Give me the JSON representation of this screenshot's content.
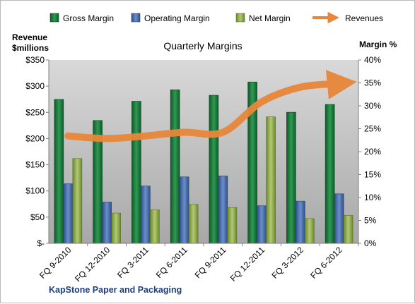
{
  "chart_data": {
    "type": "bar",
    "title": "Quarterly Margins",
    "company": "KapStone Paper and Packaging",
    "categories": [
      "FQ 9-2010",
      "FQ 12-2010",
      "FQ 3-2011",
      "FQ 6-2011",
      "FQ 9-2011",
      "FQ 12-2011",
      "FQ 3-2012",
      "FQ 6-2012"
    ],
    "left_axis": {
      "label_line1": "Revenue",
      "label_line2": "$millions",
      "ylim": [
        0,
        350
      ],
      "ticks": [
        "$-",
        "$50",
        "$100",
        "$150",
        "$200",
        "$250",
        "$300",
        "$350"
      ]
    },
    "right_axis": {
      "label": "Margin %",
      "ylim": [
        0,
        40
      ],
      "ticks": [
        "0%",
        "5%",
        "10%",
        "15%",
        "20%",
        "25%",
        "30%",
        "35%",
        "40%"
      ]
    },
    "series": [
      {
        "name": "Gross Margin",
        "axis": "right",
        "color": "#1e7a3c",
        "values": [
          31.4,
          26.8,
          31.0,
          33.5,
          32.3,
          35.2,
          28.6,
          30.3
        ]
      },
      {
        "name": "Operating Margin",
        "axis": "right",
        "color": "#4a6fae",
        "values": [
          13.0,
          9.0,
          12.5,
          14.5,
          14.7,
          8.2,
          9.2,
          10.8
        ]
      },
      {
        "name": "Net Margin",
        "axis": "right",
        "color": "#8faa4a",
        "values": [
          18.5,
          6.6,
          7.3,
          8.5,
          7.8,
          27.6,
          5.4,
          6.1
        ]
      },
      {
        "name": "Revenues",
        "axis": "left",
        "type": "line",
        "color": "#e8873a",
        "values": [
          205,
          200,
          205,
          212,
          212,
          270,
          298,
          305
        ]
      }
    ],
    "legend_position": "top",
    "grid": false
  },
  "colors": {
    "plot_bg": "#c0c0c0"
  }
}
